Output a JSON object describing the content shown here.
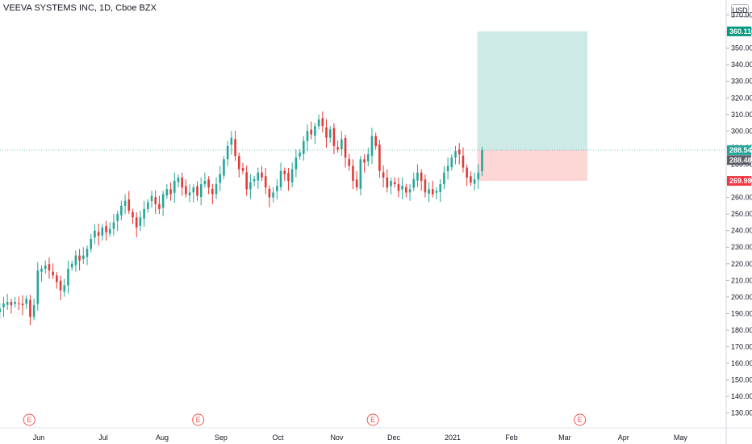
{
  "header": {
    "title": "VEEVA SYSTEMS INC, 1D, Cboe BZX",
    "currency": "USD"
  },
  "colors": {
    "up": "#26a69a",
    "down": "#e53935",
    "target_zone": "#cdeae6",
    "stop_zone": "#fcd7d5",
    "target_badge": "#089981",
    "stop_badge": "#f23645",
    "last_price_badge": "#5d606b",
    "entry_badge": "#26a69a",
    "earnings": "#ef5350"
  },
  "chart_data": {
    "type": "candlestick",
    "symbol": "VEEVA SYSTEMS INC",
    "interval": "1D",
    "exchange": "Cboe BZX",
    "ylim": [
      120,
      372
    ],
    "y_ticks": [
      "130.00",
      "140.00",
      "150.00",
      "160.00",
      "170.00",
      "180.00",
      "190.00",
      "200.00",
      "210.00",
      "220.00",
      "230.00",
      "240.00",
      "250.00",
      "260.00",
      "270.00",
      "280.00",
      "290.00",
      "300.00",
      "310.00",
      "320.00",
      "330.00",
      "340.00",
      "350.00",
      "360.00",
      "370.00"
    ],
    "x_ticks": [
      "Jun",
      "Jul",
      "Aug",
      "Sep",
      "Oct",
      "Nov",
      "Dec",
      "2021",
      "Feb",
      "Mar",
      "Apr",
      "May"
    ],
    "x_tick_days": [
      14,
      48,
      79,
      110,
      140,
      171,
      201,
      232,
      263,
      291,
      322,
      352
    ],
    "earnings_markers": {
      "label": "E",
      "days": [
        9,
        98,
        190,
        299
      ]
    },
    "price_badges": {
      "target": "360.11",
      "entry": "288.54",
      "last": "288.48",
      "stop": "269.98"
    },
    "position": {
      "type": "long",
      "entry": 288.54,
      "target": 360.11,
      "stop": 269.98,
      "start_day": 245,
      "end_day": 303
    },
    "days_start": -10,
    "closes": [
      [
        0,
        191
      ],
      [
        2,
        193
      ],
      [
        4,
        196
      ],
      [
        6,
        197
      ],
      [
        8,
        195
      ],
      [
        10,
        197
      ],
      [
        12,
        196
      ],
      [
        14,
        195
      ],
      [
        16,
        199
      ],
      [
        18,
        188
      ],
      [
        20,
        195
      ],
      [
        22,
        216
      ],
      [
        24,
        217
      ],
      [
        26,
        219
      ],
      [
        28,
        216
      ],
      [
        30,
        213
      ],
      [
        32,
        209
      ],
      [
        34,
        204
      ],
      [
        36,
        207
      ],
      [
        38,
        217
      ],
      [
        40,
        220
      ],
      [
        42,
        225
      ],
      [
        44,
        222
      ],
      [
        46,
        225
      ],
      [
        48,
        229
      ],
      [
        50,
        235
      ],
      [
        52,
        240
      ],
      [
        54,
        237
      ],
      [
        56,
        242
      ],
      [
        58,
        239
      ],
      [
        60,
        241
      ],
      [
        62,
        245
      ],
      [
        64,
        250
      ],
      [
        66,
        255
      ],
      [
        68,
        258
      ],
      [
        70,
        252
      ],
      [
        72,
        248
      ],
      [
        74,
        242
      ],
      [
        76,
        248
      ],
      [
        78,
        253
      ],
      [
        80,
        257
      ],
      [
        82,
        261
      ],
      [
        84,
        256
      ],
      [
        86,
        253
      ],
      [
        88,
        262
      ],
      [
        90,
        265
      ],
      [
        92,
        262
      ],
      [
        94,
        270
      ],
      [
        96,
        272
      ],
      [
        98,
        266
      ],
      [
        100,
        262
      ],
      [
        102,
        263
      ],
      [
        104,
        266
      ],
      [
        106,
        261
      ],
      [
        108,
        268
      ],
      [
        110,
        270
      ],
      [
        112,
        266
      ],
      [
        114,
        262
      ],
      [
        116,
        268
      ],
      [
        118,
        274
      ],
      [
        120,
        283
      ],
      [
        122,
        291
      ],
      [
        124,
        296
      ],
      [
        126,
        285
      ],
      [
        128,
        277
      ],
      [
        130,
        276
      ],
      [
        132,
        265
      ],
      [
        134,
        269
      ],
      [
        136,
        271
      ],
      [
        138,
        275
      ],
      [
        140,
        272
      ],
      [
        142,
        266
      ],
      [
        144,
        260
      ],
      [
        146,
        263
      ],
      [
        148,
        267
      ],
      [
        150,
        276
      ],
      [
        152,
        274
      ],
      [
        154,
        270
      ],
      [
        156,
        277
      ],
      [
        158,
        284
      ],
      [
        160,
        287
      ],
      [
        162,
        294
      ],
      [
        164,
        300
      ],
      [
        166,
        298
      ],
      [
        168,
        303
      ],
      [
        170,
        307
      ],
      [
        172,
        303
      ],
      [
        174,
        296
      ],
      [
        176,
        301
      ],
      [
        178,
        291
      ],
      [
        180,
        289
      ],
      [
        182,
        295
      ],
      [
        184,
        284
      ],
      [
        186,
        279
      ],
      [
        188,
        270
      ],
      [
        190,
        266
      ],
      [
        192,
        283
      ],
      [
        194,
        281
      ],
      [
        196,
        286
      ],
      [
        198,
        297
      ],
      [
        200,
        291
      ],
      [
        202,
        276
      ],
      [
        204,
        272
      ],
      [
        206,
        266
      ],
      [
        208,
        270
      ],
      [
        210,
        268
      ],
      [
        212,
        264
      ],
      [
        214,
        267
      ],
      [
        216,
        263
      ],
      [
        218,
        265
      ],
      [
        220,
        271
      ],
      [
        222,
        275
      ],
      [
        224,
        270
      ],
      [
        226,
        263
      ],
      [
        228,
        265
      ],
      [
        230,
        262
      ],
      [
        232,
        264
      ],
      [
        234,
        268
      ],
      [
        236,
        275
      ],
      [
        238,
        279
      ],
      [
        240,
        284
      ],
      [
        242,
        288
      ],
      [
        244,
        286
      ],
      [
        246,
        278
      ],
      [
        248,
        272
      ],
      [
        250,
        269
      ],
      [
        252,
        271
      ],
      [
        254,
        275
      ],
      [
        256,
        288.48
      ]
    ],
    "note": "Candles read from chart; x in calendar days from 2020-05-22 origin used only for axis placement"
  }
}
